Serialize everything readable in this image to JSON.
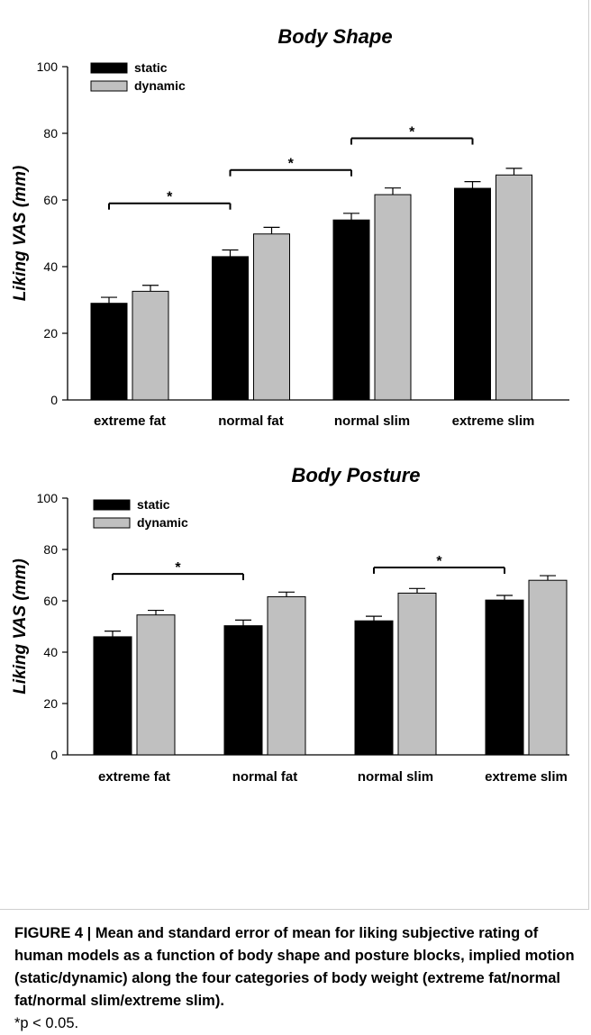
{
  "chart_data": [
    {
      "type": "bar",
      "title": "Body Shape",
      "ylabel": "Liking VAS (mm)",
      "xlabel": "",
      "ylim": [
        0,
        100
      ],
      "yticks": [
        "0",
        "20",
        "40",
        "60",
        "80",
        "100"
      ],
      "categories": [
        "extreme fat",
        "normal fat",
        "normal slim",
        "extreme slim"
      ],
      "legend_position": "top-left",
      "series": [
        {
          "name": "static",
          "color": "#000000",
          "values": [
            29,
            43,
            54,
            63.5
          ],
          "errors": [
            1.8,
            2.0,
            2.0,
            2.0
          ]
        },
        {
          "name": "dynamic",
          "color": "#c0c0c0",
          "values": [
            32.6,
            49.8,
            61.6,
            67.5
          ],
          "errors": [
            1.8,
            2.0,
            2.0,
            2.0
          ]
        }
      ],
      "significance": [
        {
          "from": 0,
          "to": 1,
          "y": 59,
          "label": "*"
        },
        {
          "from": 1,
          "to": 2,
          "y": 69,
          "label": "*"
        },
        {
          "from": 2,
          "to": 3,
          "y": 78.5,
          "label": "*"
        }
      ]
    },
    {
      "type": "bar",
      "title": "Body Posture",
      "ylabel": "Liking VAS (mm)",
      "xlabel": "",
      "ylim": [
        0,
        100
      ],
      "yticks": [
        "0",
        "20",
        "40",
        "60",
        "80",
        "100"
      ],
      "categories": [
        "extreme fat",
        "normal fat",
        "normal slim",
        "extreme slim"
      ],
      "legend_position": "top-left",
      "series": [
        {
          "name": "static",
          "color": "#000000",
          "values": [
            46,
            50.3,
            52.2,
            60.3
          ],
          "errors": [
            2.2,
            2.2,
            1.8,
            1.8
          ]
        },
        {
          "name": "dynamic",
          "color": "#c0c0c0",
          "values": [
            54.5,
            61.6,
            63,
            68
          ],
          "errors": [
            1.8,
            1.8,
            1.8,
            1.8
          ]
        }
      ],
      "significance": [
        {
          "from": 0,
          "to": 1,
          "y": 70.5,
          "label": "*"
        },
        {
          "from": 2,
          "to": 3,
          "y": 73,
          "label": "*"
        }
      ]
    }
  ],
  "caption": {
    "title": "FIGURE 4 | Mean and standard error of mean for liking subjective rating of human models as a function of body shape and posture blocks, implied motion (static/dynamic) along the four categories of body weight (extreme fat/normal fat/normal slim/extreme slim).",
    "note": "*p < 0.05."
  }
}
